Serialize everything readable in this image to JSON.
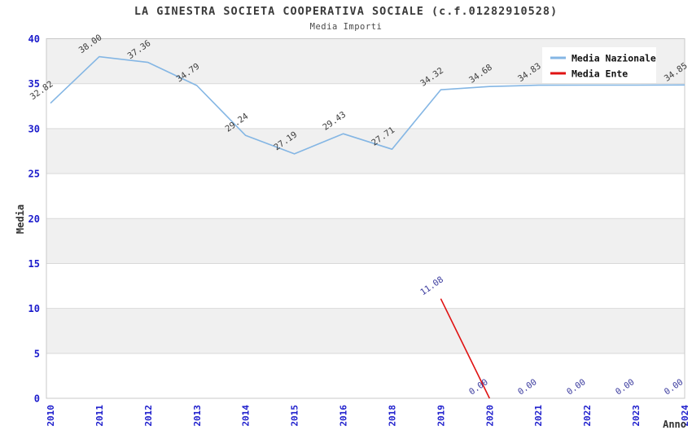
{
  "title": "LA GINESTRA SOCIETA COOPERATIVA SOCIALE (c.f.01282910528)",
  "subtitle": "Media Importi",
  "chart_data": {
    "type": "line",
    "title": "LA GINESTRA SOCIETA COOPERATIVA SOCIALE (c.f.01282910528)",
    "subtitle": "Media Importi",
    "xlabel": "Anno",
    "ylabel": "Media",
    "ylim": [
      0,
      40
    ],
    "ytick_step": 5,
    "grid": "horizontal-bands-alternating",
    "legend_position": "top-right",
    "categories": [
      "2010",
      "2011",
      "2012",
      "2013",
      "2014",
      "2015",
      "2016",
      "2018",
      "2019",
      "2020",
      "2021",
      "2022",
      "2023",
      "2024"
    ],
    "series": [
      {
        "name": "Media Nazionale",
        "color": "#84b6e4",
        "label_color": "#3d3d3d",
        "values": [
          32.82,
          38.0,
          37.36,
          34.79,
          29.24,
          27.19,
          29.43,
          27.71,
          34.32,
          34.68,
          34.83,
          34.84,
          34.84,
          34.85
        ],
        "labels": [
          "32.82",
          "38.00",
          "37.36",
          "34.79",
          "29.24",
          "27.19",
          "29.43",
          "27.71",
          "34.32",
          "34.68",
          "34.83",
          "34.84",
          "34.84",
          "34.85"
        ]
      },
      {
        "name": "Media Ente",
        "color": "#e01212",
        "label_color": "#3a3a9e",
        "values": [
          null,
          null,
          null,
          null,
          null,
          null,
          null,
          null,
          11.08,
          0,
          0,
          0,
          0,
          0
        ],
        "labels": [
          "",
          "",
          "",
          "",
          "",
          "",
          "",
          "",
          "11.08",
          "0.00",
          "0.00",
          "0.00",
          "0.00",
          "0.00"
        ],
        "line_segments": [
          [
            8,
            9
          ]
        ]
      }
    ]
  },
  "colors": {
    "background": "#ffffff",
    "band_gray": "#f0f0f0",
    "gridline": "#d9d9d9",
    "plot_border": "#c8c8c8",
    "axis_tick_text": "#1c1ccc",
    "axis_title_text": "#333333",
    "legend_text": "#111111",
    "legend_background": "#ffffff"
  }
}
